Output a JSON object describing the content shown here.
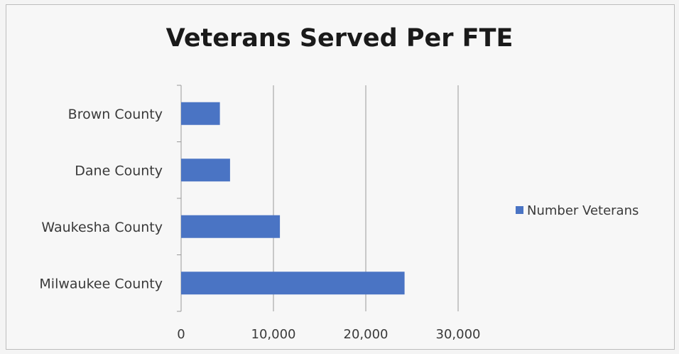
{
  "chart_data": {
    "type": "bar",
    "orientation": "horizontal",
    "title": "Veterans Served Per FTE",
    "categories": [
      "Brown County",
      "Dane County",
      "Waukesha County",
      "Milwaukee County"
    ],
    "series": [
      {
        "name": "Number Veterans",
        "values": [
          4200,
          5300,
          10700,
          24200
        ],
        "color": "#4a74c4"
      }
    ],
    "xticks": [
      "0",
      "10,000",
      "20,000",
      "30,000"
    ],
    "xlim": [
      0,
      30000
    ],
    "grid": "vertical",
    "legend": "right"
  }
}
